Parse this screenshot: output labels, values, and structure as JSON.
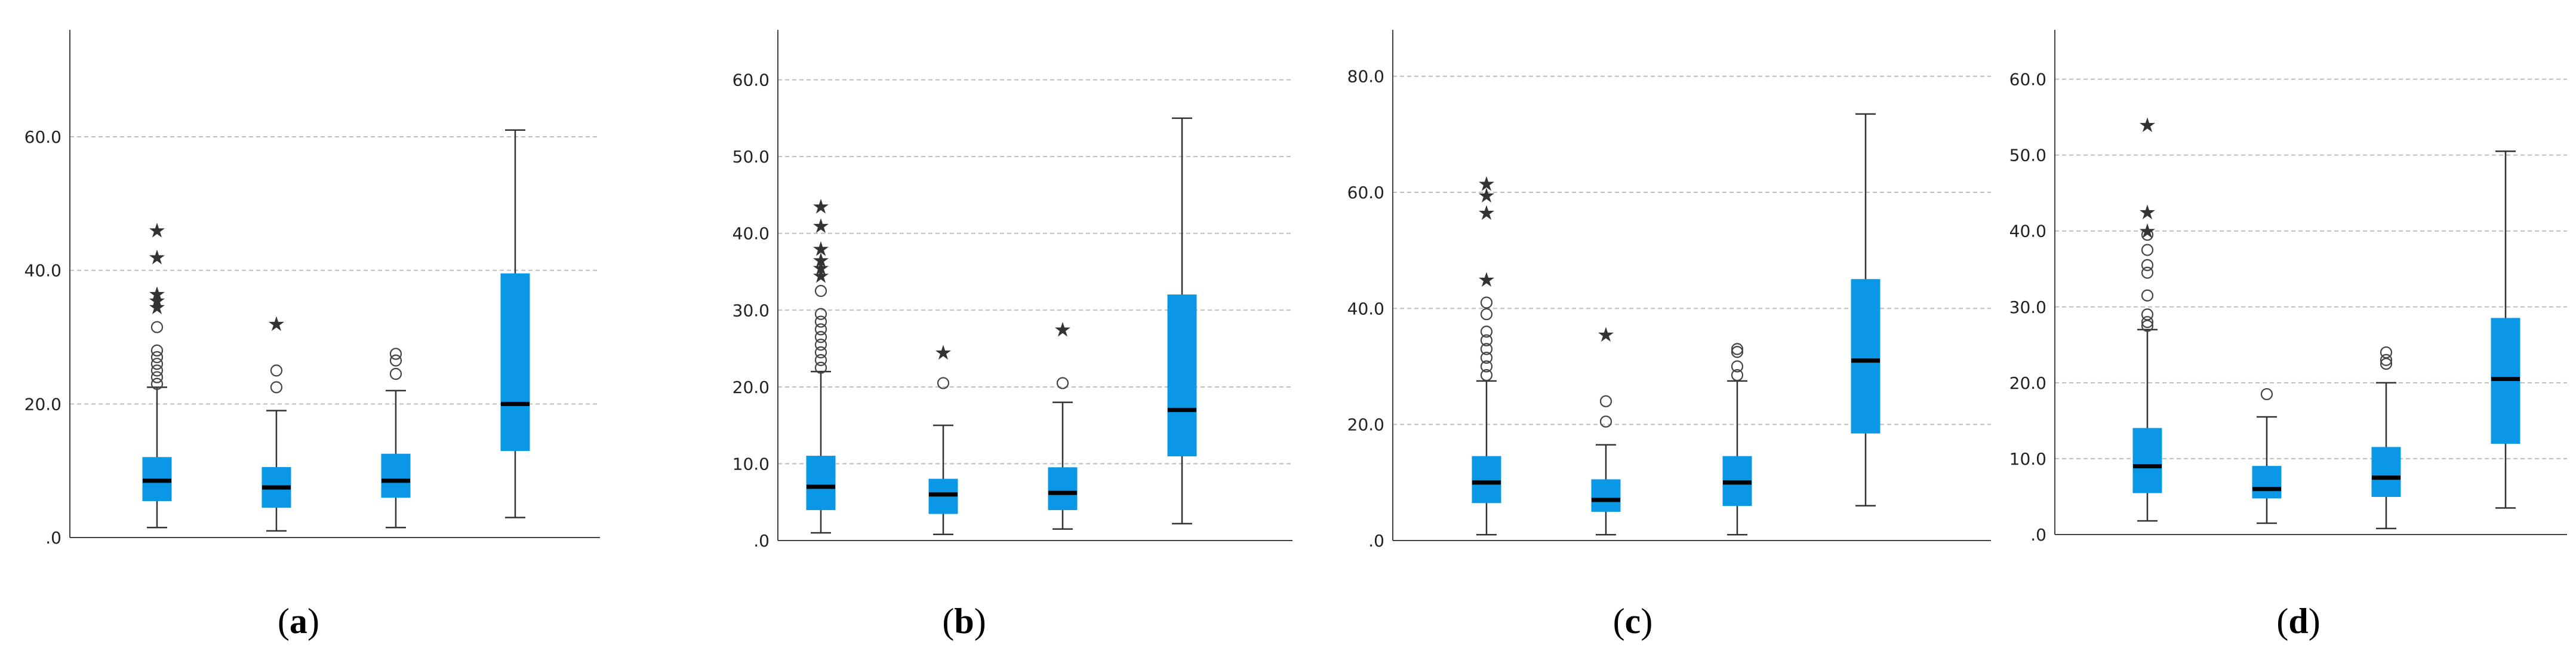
{
  "figure": {
    "caption_labels": [
      "(a)",
      "(b)",
      "(c)",
      "(d)"
    ]
  },
  "colors": {
    "box_fill": "#0A98E6",
    "median": "#000000",
    "whisker": "#333333",
    "grid": "#bdbdbd",
    "axis": "#444444"
  },
  "chart_data": [
    {
      "type": "box",
      "panel_label": "(a)",
      "letter": "a",
      "ylim": [
        0,
        76
      ],
      "y_ticks": [
        0,
        20,
        40,
        60
      ],
      "y_tick_labels": [
        ".0",
        "20.0",
        "40.0",
        "60.0"
      ],
      "grid": true,
      "series": [
        {
          "q1": 5.5,
          "median": 8.5,
          "q3": 12.0,
          "whisker_low": 1.5,
          "whisker_high": 22.5,
          "outliers_circle": [
            23.0,
            24.0,
            25.0,
            26.0,
            27.0,
            28.0,
            31.5
          ],
          "outliers_star": [
            34.5,
            35.5,
            36.5,
            42.0,
            46.0
          ]
        },
        {
          "q1": 4.5,
          "median": 7.5,
          "q3": 10.5,
          "whisker_low": 1.0,
          "whisker_high": 19.0,
          "outliers_circle": [
            22.5,
            25.0
          ],
          "outliers_star": [
            32.0
          ]
        },
        {
          "q1": 6.0,
          "median": 8.5,
          "q3": 12.5,
          "whisker_low": 1.5,
          "whisker_high": 22.0,
          "outliers_circle": [
            24.5,
            26.5,
            27.5
          ],
          "outliers_star": []
        },
        {
          "q1": 13.0,
          "median": 20.0,
          "q3": 39.5,
          "whisker_low": 3.0,
          "whisker_high": 61.0,
          "outliers_circle": [],
          "outliers_star": []
        }
      ]
    },
    {
      "type": "box",
      "panel_label": "(b)",
      "letter": "b",
      "ylim": [
        0,
        66.5
      ],
      "y_ticks": [
        0,
        10,
        20,
        30,
        40,
        50,
        60
      ],
      "y_tick_labels": [
        ".0",
        "10.0",
        "20.0",
        "30.0",
        "40.0",
        "50.0",
        "60.0"
      ],
      "grid": true,
      "series": [
        {
          "q1": 4.0,
          "median": 7.0,
          "q3": 11.0,
          "whisker_low": 1.0,
          "whisker_high": 22.0,
          "outliers_circle": [
            22.5,
            23.5,
            24.5,
            25.5,
            26.5,
            27.5,
            28.5,
            29.5,
            32.5
          ],
          "outliers_star": [
            34.5,
            35.5,
            36.5,
            38.0,
            41.0,
            43.5
          ]
        },
        {
          "q1": 3.5,
          "median": 6.0,
          "q3": 8.0,
          "whisker_low": 0.8,
          "whisker_high": 15.0,
          "outliers_circle": [
            20.5
          ],
          "outliers_star": [
            24.5
          ]
        },
        {
          "q1": 4.0,
          "median": 6.2,
          "q3": 9.5,
          "whisker_low": 1.5,
          "whisker_high": 18.0,
          "outliers_circle": [
            20.5
          ],
          "outliers_star": [
            27.5
          ]
        },
        {
          "q1": 11.0,
          "median": 17.0,
          "q3": 32.0,
          "whisker_low": 2.2,
          "whisker_high": 55.0,
          "outliers_circle": [],
          "outliers_star": []
        }
      ]
    },
    {
      "type": "box",
      "panel_label": "(c)",
      "letter": "c",
      "ylim": [
        0,
        88
      ],
      "y_ticks": [
        0,
        20,
        40,
        60,
        80
      ],
      "y_tick_labels": [
        ".0",
        "20.0",
        "40.0",
        "60.0",
        "80.0"
      ],
      "grid": true,
      "series": [
        {
          "q1": 6.5,
          "median": 10.0,
          "q3": 14.5,
          "whisker_low": 1.0,
          "whisker_high": 27.5,
          "outliers_circle": [
            28.5,
            30.0,
            31.5,
            33.0,
            34.5,
            36.0,
            39.0,
            41.0
          ],
          "outliers_star": [
            45.0,
            56.5,
            59.5,
            61.5
          ]
        },
        {
          "q1": 5.0,
          "median": 7.0,
          "q3": 10.5,
          "whisker_low": 1.0,
          "whisker_high": 16.5,
          "outliers_circle": [
            20.5,
            24.0
          ],
          "outliers_star": [
            35.5
          ]
        },
        {
          "q1": 6.0,
          "median": 10.0,
          "q3": 14.5,
          "whisker_low": 1.0,
          "whisker_high": 27.5,
          "outliers_circle": [
            28.5,
            30.0,
            32.5,
            33.0
          ],
          "outliers_star": []
        },
        {
          "q1": 18.5,
          "median": 31.0,
          "q3": 45.0,
          "whisker_low": 6.0,
          "whisker_high": 73.5,
          "outliers_circle": [],
          "outliers_star": []
        }
      ]
    },
    {
      "type": "box",
      "panel_label": "(d)",
      "letter": "d",
      "ylim": [
        0,
        66.5
      ],
      "y_ticks": [
        0,
        10,
        20,
        30,
        40,
        50,
        60
      ],
      "y_tick_labels": [
        ".0",
        "10.0",
        "20.0",
        "30.0",
        "40.0",
        "50.0",
        "60.0"
      ],
      "grid": true,
      "series": [
        {
          "q1": 5.5,
          "median": 9.0,
          "q3": 14.0,
          "whisker_low": 1.8,
          "whisker_high": 27.0,
          "outliers_circle": [
            27.5,
            28.0,
            29.0,
            31.5,
            34.5,
            35.5,
            37.5,
            39.5
          ],
          "outliers_star": [
            40.0,
            42.5,
            54.0
          ]
        },
        {
          "q1": 4.8,
          "median": 6.0,
          "q3": 9.0,
          "whisker_low": 1.5,
          "whisker_high": 15.5,
          "outliers_circle": [
            18.5
          ],
          "outliers_star": []
        },
        {
          "q1": 5.0,
          "median": 7.5,
          "q3": 11.5,
          "whisker_low": 0.8,
          "whisker_high": 20.0,
          "outliers_circle": [
            22.5,
            23.0,
            24.0
          ],
          "outliers_star": []
        },
        {
          "q1": 12.0,
          "median": 20.5,
          "q3": 28.5,
          "whisker_low": 3.5,
          "whisker_high": 50.5,
          "outliers_circle": [],
          "outliers_star": []
        }
      ]
    }
  ]
}
